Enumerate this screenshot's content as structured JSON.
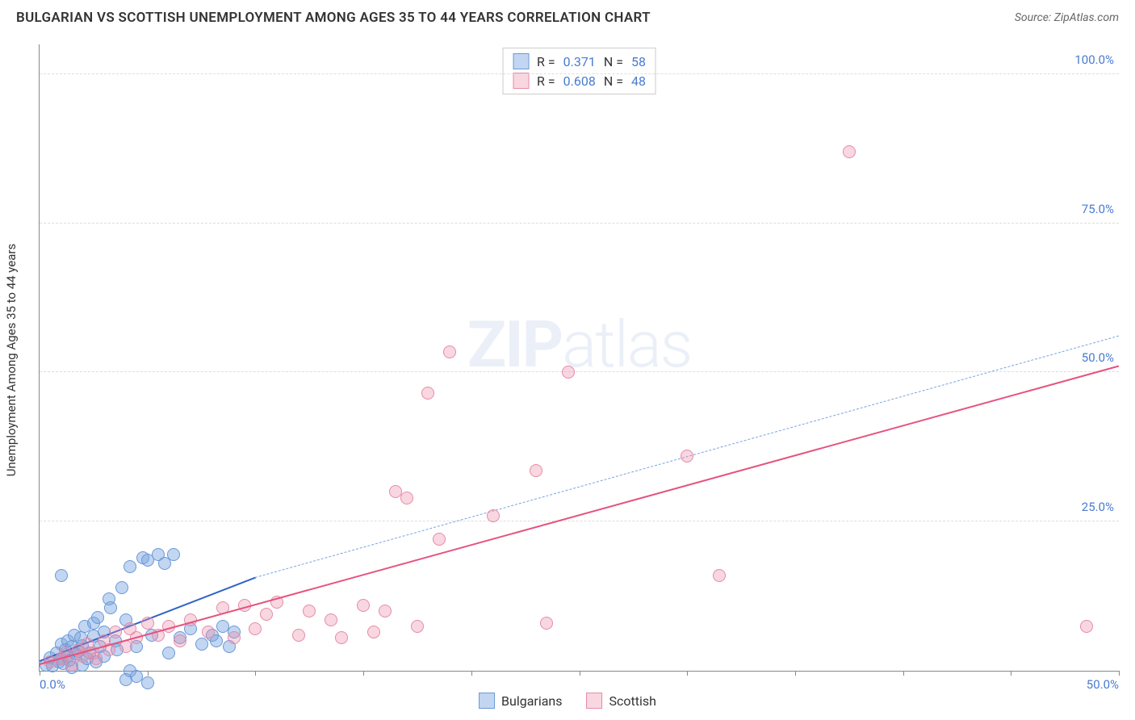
{
  "title": "BULGARIAN VS SCOTTISH UNEMPLOYMENT AMONG AGES 35 TO 44 YEARS CORRELATION CHART",
  "source_label": "Source: ",
  "source_name": "ZipAtlas.com",
  "watermark_zip": "ZIP",
  "watermark_atlas": "atlas",
  "chart": {
    "type": "scatter",
    "yaxis_title": "Unemployment Among Ages 35 to 44 years",
    "xlim": [
      0,
      50
    ],
    "ylim": [
      0,
      105
    ],
    "xtick_positions": [
      0,
      5,
      10,
      15,
      20,
      25,
      30,
      35,
      40,
      45,
      50
    ],
    "xtick_labels": {
      "0": "0.0%",
      "50": "50.0%"
    },
    "ytick_positions": [
      25,
      50,
      75,
      100
    ],
    "ytick_labels": [
      "25.0%",
      "50.0%",
      "75.0%",
      "100.0%"
    ],
    "background_color": "#ffffff",
    "grid_color": "#dddddd",
    "axis_color": "#888888",
    "tick_label_color": "#4a7bd0",
    "marker_radius": 8,
    "marker_border_width": 1.2,
    "series": [
      {
        "name": "Bulgarians",
        "fill_color": "rgba(120,165,225,0.45)",
        "stroke_color": "#6a98d8",
        "trend_color": "#2f63c4",
        "trend_dash_color": "#7aa3e0",
        "trend_line_width": 2.2,
        "R": "0.371",
        "N": "58",
        "trend_solid": {
          "x1": 0,
          "y1": 1.5,
          "x2": 10,
          "y2": 15.5
        },
        "trend_dash": {
          "x1": 10,
          "y1": 15.5,
          "x2": 50,
          "y2": 56
        },
        "points": [
          [
            0.3,
            1.0
          ],
          [
            0.5,
            2.2
          ],
          [
            0.6,
            0.8
          ],
          [
            0.8,
            3.0
          ],
          [
            0.9,
            1.5
          ],
          [
            1.0,
            4.5
          ],
          [
            1.0,
            2.0
          ],
          [
            1.1,
            1.2
          ],
          [
            1.2,
            3.5
          ],
          [
            1.3,
            2.5
          ],
          [
            1.3,
            5.0
          ],
          [
            1.4,
            1.8
          ],
          [
            1.5,
            4.0
          ],
          [
            1.5,
            0.5
          ],
          [
            1.6,
            6.0
          ],
          [
            1.7,
            2.8
          ],
          [
            1.8,
            3.2
          ],
          [
            1.9,
            5.5
          ],
          [
            2.0,
            1.0
          ],
          [
            2.0,
            4.2
          ],
          [
            2.1,
            7.5
          ],
          [
            2.2,
            2.0
          ],
          [
            2.3,
            3.0
          ],
          [
            2.5,
            5.8
          ],
          [
            2.5,
            8.0
          ],
          [
            2.6,
            1.5
          ],
          [
            2.8,
            4.0
          ],
          [
            3.0,
            6.5
          ],
          [
            3.0,
            2.5
          ],
          [
            3.2,
            12.0
          ],
          [
            3.5,
            5.0
          ],
          [
            3.6,
            3.5
          ],
          [
            3.8,
            14.0
          ],
          [
            4.0,
            8.5
          ],
          [
            4.2,
            0.0
          ],
          [
            4.2,
            17.5
          ],
          [
            4.5,
            4.0
          ],
          [
            4.5,
            -1.0
          ],
          [
            4.8,
            19.0
          ],
          [
            5.0,
            18.5
          ],
          [
            5.2,
            6.0
          ],
          [
            5.5,
            19.5
          ],
          [
            5.8,
            18.0
          ],
          [
            6.0,
            3.0
          ],
          [
            6.2,
            19.5
          ],
          [
            6.5,
            5.5
          ],
          [
            7.0,
            7.0
          ],
          [
            7.5,
            4.5
          ],
          [
            8.0,
            6.0
          ],
          [
            8.2,
            5.0
          ],
          [
            8.5,
            7.5
          ],
          [
            9.0,
            6.5
          ],
          [
            1.0,
            16.0
          ],
          [
            4.0,
            -1.5
          ],
          [
            5.0,
            -2.0
          ],
          [
            2.7,
            9.0
          ],
          [
            3.3,
            10.5
          ],
          [
            8.8,
            4.0
          ]
        ]
      },
      {
        "name": "Scottish",
        "fill_color": "rgba(235,140,170,0.35)",
        "stroke_color": "#e68aa8",
        "trend_color": "#e5537e",
        "trend_line_width": 2.4,
        "R": "0.608",
        "N": "48",
        "trend_solid": {
          "x1": 0,
          "y1": 1.0,
          "x2": 50,
          "y2": 51
        },
        "points": [
          [
            0.5,
            1.5
          ],
          [
            1.0,
            2.0
          ],
          [
            1.2,
            3.0
          ],
          [
            1.5,
            1.0
          ],
          [
            1.8,
            3.5
          ],
          [
            2.0,
            2.5
          ],
          [
            2.2,
            4.5
          ],
          [
            2.5,
            3.0
          ],
          [
            2.6,
            2.0
          ],
          [
            3.0,
            5.0
          ],
          [
            3.2,
            3.5
          ],
          [
            3.5,
            6.5
          ],
          [
            4.0,
            4.0
          ],
          [
            4.2,
            7.0
          ],
          [
            4.5,
            5.5
          ],
          [
            5.0,
            8.0
          ],
          [
            5.5,
            6.0
          ],
          [
            6.0,
            7.5
          ],
          [
            6.5,
            5.0
          ],
          [
            7.0,
            8.5
          ],
          [
            7.8,
            6.5
          ],
          [
            8.5,
            10.5
          ],
          [
            9.0,
            5.5
          ],
          [
            9.5,
            11.0
          ],
          [
            10.0,
            7.0
          ],
          [
            10.5,
            9.5
          ],
          [
            11.0,
            11.5
          ],
          [
            12.0,
            6.0
          ],
          [
            12.5,
            10.0
          ],
          [
            13.5,
            8.5
          ],
          [
            14.0,
            5.5
          ],
          [
            15.0,
            11.0
          ],
          [
            15.5,
            6.5
          ],
          [
            16.0,
            10.0
          ],
          [
            16.5,
            30.0
          ],
          [
            17.0,
            29.0
          ],
          [
            17.5,
            7.5
          ],
          [
            18.0,
            46.5
          ],
          [
            18.5,
            22.0
          ],
          [
            19.0,
            53.5
          ],
          [
            21.0,
            26.0
          ],
          [
            23.0,
            33.5
          ],
          [
            23.5,
            8.0
          ],
          [
            24.5,
            50.0
          ],
          [
            30.0,
            36.0
          ],
          [
            31.5,
            16.0
          ],
          [
            37.5,
            87.0
          ],
          [
            48.5,
            7.5
          ]
        ]
      }
    ]
  },
  "r_legend": {
    "R_label": "R  = ",
    "N_label": "N  = "
  },
  "bottom_legend": {
    "items": [
      "Bulgarians",
      "Scottish"
    ]
  }
}
